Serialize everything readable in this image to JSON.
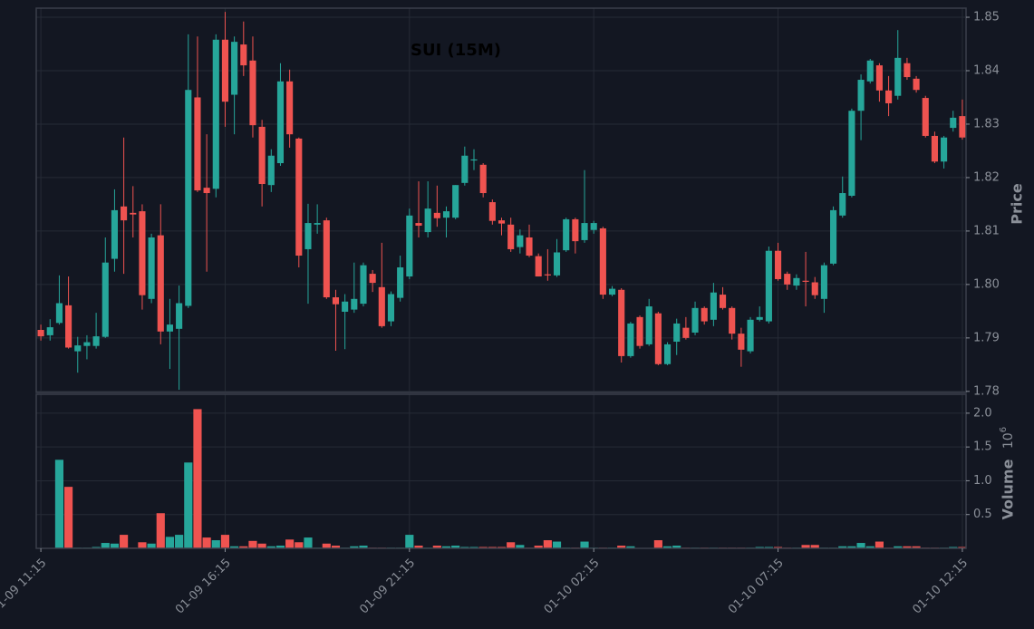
{
  "chart_data": {
    "type": "candlestick",
    "title": "SUI (15M)",
    "ylabel": "Price",
    "y2label": "Volume",
    "y2_offset": {
      "base": "10",
      "exponent": "6"
    },
    "up_color": "#26a69a",
    "down_color": "#ef5350",
    "grid": true,
    "xlim": [
      -0.5,
      100.4
    ],
    "xticks": [
      {
        "value": 0,
        "label": "01-09 11:15"
      },
      {
        "value": 20,
        "label": "01-09 16:15"
      },
      {
        "value": 40,
        "label": "01-09 21:15"
      },
      {
        "value": 60,
        "label": "01-10 02:15"
      },
      {
        "value": 80,
        "label": "01-10 07:15"
      },
      {
        "value": 100,
        "label": "01-10 12:15"
      }
    ],
    "ylim": [
      1.7798,
      1.8517
    ],
    "yticks": [
      1.78,
      1.79,
      {
        "value": 1.8,
        "label": "1.80"
      },
      1.81,
      1.82,
      1.83,
      1.84,
      1.85
    ],
    "y2lim": [
      0,
      2.28
    ],
    "y2ticks": [
      0.5,
      {
        "value": 1,
        "label": "1.0"
      },
      1.5,
      {
        "value": 2,
        "label": "2.0"
      }
    ],
    "open": [
      1.7915,
      1.7905,
      1.7928,
      1.7961,
      1.7875,
      1.7885,
      1.7885,
      1.7902,
      1.8048,
      1.8146,
      1.8134,
      1.8137,
      1.7973,
      1.8092,
      1.7912,
      1.7917,
      1.796,
      1.835,
      1.8181,
      1.8179,
      1.8458,
      1.8355,
      1.8449,
      1.8419,
      1.8295,
      1.8186,
      1.8227,
      1.838,
      1.8273,
      1.8066,
      1.8112,
      1.812,
      1.7976,
      1.7949,
      1.7953,
      1.7964,
      1.802,
      1.7995,
      1.7931,
      1.7975,
      1.8015,
      1.8115,
      1.8098,
      1.8134,
      1.8125,
      1.8125,
      1.819,
      1.8232,
      1.8224,
      1.8154,
      1.812,
      1.8112,
      1.807,
      1.8088,
      1.8053,
      1.8019,
      1.8017,
      1.8064,
      1.8122,
      1.8083,
      1.8102,
      1.8105,
      1.7981,
      1.799,
      1.7866,
      1.7939,
      1.7888,
      1.7946,
      1.7851,
      1.7893,
      1.7919,
      1.791,
      1.7956,
      1.7934,
      1.7981,
      1.7956,
      1.7908,
      1.7875,
      1.7934,
      1.7931,
      1.8063,
      1.802,
      1.7998,
      1.8007,
      1.8004,
      1.7973,
      1.8039,
      1.8129,
      1.8166,
      1.8325,
      1.838,
      1.841,
      1.8363,
      1.8353,
      1.8414,
      1.8385,
      1.8349,
      1.8278,
      1.823,
      1.8293,
      1.8315
    ],
    "close": [
      1.7903,
      1.792,
      1.7965,
      1.7882,
      1.7886,
      1.7892,
      1.7903,
      1.8041,
      1.8139,
      1.812,
      1.8131,
      1.798,
      1.8088,
      1.7912,
      1.7925,
      1.7965,
      1.8364,
      1.8176,
      1.8171,
      1.8458,
      1.8342,
      1.8454,
      1.841,
      1.8298,
      1.8188,
      1.8241,
      1.838,
      1.8281,
      1.8054,
      1.8115,
      1.8115,
      1.7976,
      1.7963,
      1.7968,
      1.7973,
      1.8036,
      1.8003,
      1.7922,
      1.7982,
      1.8032,
      1.8129,
      1.811,
      1.8142,
      1.8124,
      1.8137,
      1.8186,
      1.8241,
      1.8234,
      1.8171,
      1.8119,
      1.8114,
      1.8066,
      1.8092,
      1.8054,
      1.8015,
      1.8017,
      1.806,
      1.8122,
      1.8081,
      1.8115,
      1.8115,
      1.7981,
      1.7992,
      1.7866,
      1.7927,
      1.7885,
      1.7959,
      1.7851,
      1.7888,
      1.7927,
      1.79,
      1.7956,
      1.7931,
      1.7985,
      1.7956,
      1.7908,
      1.7878,
      1.7934,
      1.7939,
      1.8063,
      1.801,
      1.8,
      1.8012,
      1.8005,
      1.798,
      1.8036,
      1.8139,
      1.8171,
      1.8325,
      1.8383,
      1.8419,
      1.8363,
      1.8339,
      1.8424,
      1.8388,
      1.8364,
      1.8278,
      1.823,
      1.8275,
      1.8312,
      1.8275
    ],
    "high": [
      1.7925,
      1.7935,
      1.8017,
      1.8015,
      1.7902,
      1.7905,
      1.7947,
      1.8088,
      1.8178,
      1.8275,
      1.8184,
      1.815,
      1.8095,
      1.815,
      1.7973,
      1.7998,
      1.8468,
      1.8464,
      1.8281,
      1.8468,
      1.851,
      1.8464,
      1.8492,
      1.8464,
      1.8308,
      1.8253,
      1.8414,
      1.8402,
      1.8275,
      1.8151,
      1.815,
      1.8125,
      1.799,
      1.7982,
      1.8041,
      1.8041,
      1.8027,
      1.8078,
      1.7987,
      1.8054,
      1.8142,
      1.8193,
      1.8193,
      1.8185,
      1.8146,
      1.8186,
      1.8258,
      1.8253,
      1.8227,
      1.8159,
      1.8125,
      1.8125,
      1.8103,
      1.8112,
      1.8058,
      1.8066,
      1.8085,
      1.8125,
      1.8125,
      1.8214,
      1.8119,
      1.8108,
      1.7997,
      1.7993,
      1.793,
      1.7942,
      1.7973,
      1.7949,
      1.7892,
      1.7936,
      1.7939,
      1.7968,
      1.7959,
      1.8003,
      1.7995,
      1.7959,
      1.7919,
      1.7939,
      1.7959,
      1.8071,
      1.8078,
      1.8024,
      1.8019,
      1.8061,
      1.8014,
      1.8041,
      1.8146,
      1.8202,
      1.8329,
      1.8393,
      1.8422,
      1.8414,
      1.839,
      1.8476,
      1.8424,
      1.839,
      1.8353,
      1.8286,
      1.8278,
      1.8325,
      1.8346
    ],
    "low": [
      1.7895,
      1.7895,
      1.7925,
      1.788,
      1.7835,
      1.786,
      1.788,
      1.79,
      1.8024,
      1.802,
      1.8088,
      1.7953,
      1.7965,
      1.7888,
      1.7842,
      1.7803,
      1.7956,
      1.8173,
      1.8024,
      1.8163,
      1.8295,
      1.8281,
      1.839,
      1.8275,
      1.8146,
      1.8173,
      1.8222,
      1.8256,
      1.8032,
      1.7964,
      1.8095,
      1.7973,
      1.7876,
      1.7879,
      1.7947,
      1.7959,
      1.7986,
      1.7919,
      1.7922,
      1.7968,
      1.801,
      1.8088,
      1.8088,
      1.8108,
      1.8088,
      1.8122,
      1.8185,
      1.8214,
      1.8163,
      1.8112,
      1.8092,
      1.8061,
      1.8058,
      1.8051,
      1.8015,
      1.8007,
      1.8014,
      1.8061,
      1.8058,
      1.8078,
      1.8095,
      1.7973,
      1.7978,
      1.7854,
      1.7863,
      1.788,
      1.7885,
      1.7849,
      1.7849,
      1.7868,
      1.7897,
      1.7905,
      1.7925,
      1.7922,
      1.7953,
      1.7897,
      1.7846,
      1.7871,
      1.7931,
      1.7927,
      1.8007,
      1.799,
      1.799,
      1.7959,
      1.7973,
      1.7947,
      1.8036,
      1.8125,
      1.8163,
      1.827,
      1.8376,
      1.8342,
      1.8315,
      1.8346,
      1.8383,
      1.8359,
      1.8275,
      1.8227,
      1.8217,
      1.8286,
      1.8271
    ],
    "volume": [
      0.005,
      0.005,
      1.31,
      0.91,
      0.01,
      0.01,
      0.02,
      0.08,
      0.07,
      0.2,
      0.01,
      0.09,
      0.07,
      0.52,
      0.17,
      0.2,
      1.27,
      2.06,
      0.16,
      0.12,
      0.2,
      0.03,
      0.03,
      0.11,
      0.07,
      0.03,
      0.04,
      0.13,
      0.09,
      0.16,
      0.01,
      0.07,
      0.04,
      0.01,
      0.03,
      0.04,
      0.01,
      0.01,
      0.01,
      0.01,
      0.2,
      0.04,
      0.01,
      0.04,
      0.03,
      0.04,
      0.02,
      0.02,
      0.02,
      0.02,
      0.02,
      0.09,
      0.05,
      0.01,
      0.04,
      0.12,
      0.1,
      0.01,
      0.01,
      0.1,
      0.01,
      0.01,
      0.01,
      0.04,
      0.03,
      0.005,
      0.005,
      0.12,
      0.03,
      0.04,
      0.01,
      0.01,
      0.01,
      0.01,
      0.01,
      0.01,
      0.01,
      0.01,
      0.02,
      0.02,
      0.02,
      0.01,
      0.01,
      0.05,
      0.05,
      0.01,
      0.01,
      0.03,
      0.03,
      0.08,
      0.03,
      0.1,
      0.01,
      0.03,
      0.03,
      0.03,
      0.01,
      0.01,
      0.01,
      0.02,
      0.02
    ]
  }
}
